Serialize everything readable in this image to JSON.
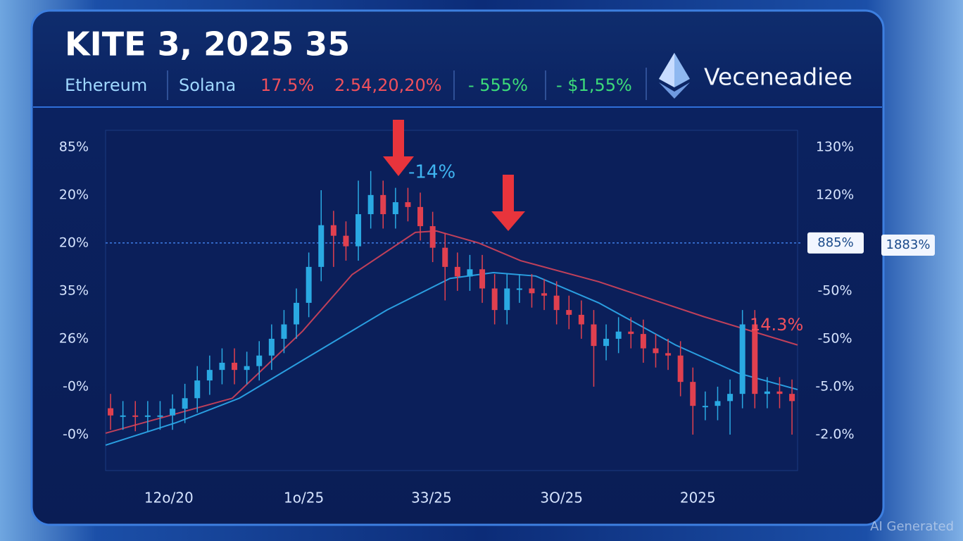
{
  "chart_data": {
    "type": "candlestick",
    "title": "KITE 3, 2025 35",
    "header_items": [
      {
        "text": "Ethereum",
        "color": "#9fd8ff"
      },
      {
        "text": "Solana",
        "color": "#9fd8ff"
      },
      {
        "text": "17.5%",
        "color": "#f0505c"
      },
      {
        "text": "2.54,20,20%",
        "color": "#f0505c"
      },
      {
        "text": "- 555%",
        "color": "#3ddc7a"
      },
      {
        "text": "- $1,55%",
        "color": "#3ddc7a"
      }
    ],
    "brand": "Veceneadiee",
    "watermark": "AI Generated",
    "annotations": [
      {
        "text": "-14%",
        "color": "#3fb4f0"
      },
      {
        "text": "14.3%",
        "color": "#f0505c"
      },
      {
        "text": "1883%",
        "color": "#1a4a8a"
      }
    ],
    "up_color": "#2aa9e2",
    "down_color": "#e0404f",
    "x": [
      0,
      1,
      2,
      3,
      4,
      5,
      6,
      7,
      8,
      9,
      10,
      11,
      12,
      13,
      14,
      15,
      16,
      17,
      18,
      19,
      20,
      21,
      22,
      23,
      24,
      25,
      26,
      27,
      28,
      29,
      30,
      31,
      32,
      33,
      34,
      35,
      36,
      37,
      38,
      39,
      40,
      41,
      42,
      43,
      44,
      45,
      46,
      47,
      48,
      49,
      50,
      51,
      52,
      53,
      54,
      55
    ],
    "open": [
      0.55,
      0.4,
      0.4,
      0.37,
      0.4,
      0.4,
      0.54,
      0.76,
      1.13,
      1.35,
      1.5,
      1.35,
      1.43,
      1.65,
      2.0,
      2.3,
      2.75,
      3.5,
      4.37,
      4.15,
      3.93,
      4.6,
      5.0,
      4.6,
      4.85,
      4.75,
      4.35,
      3.9,
      3.5,
      3.3,
      3.45,
      3.05,
      2.6,
      3.05,
      3.05,
      2.95,
      2.9,
      2.6,
      2.5,
      2.3,
      1.85,
      2.0,
      2.15,
      2.1,
      1.8,
      1.7,
      1.65,
      1.1,
      0.6,
      0.6,
      0.7,
      0.85,
      2.3,
      0.85,
      0.9,
      0.85
    ],
    "high": [
      0.85,
      0.7,
      0.7,
      0.7,
      0.7,
      0.84,
      1.06,
      1.43,
      1.65,
      1.8,
      1.8,
      1.73,
      1.95,
      2.3,
      2.6,
      3.05,
      3.8,
      5.1,
      4.67,
      4.45,
      5.3,
      5.5,
      5.3,
      5.15,
      5.15,
      5.05,
      4.65,
      4.2,
      3.8,
      3.75,
      3.75,
      3.35,
      3.35,
      3.35,
      3.35,
      3.25,
      3.2,
      2.9,
      2.8,
      2.6,
      2.3,
      2.45,
      2.45,
      2.4,
      2.1,
      2.0,
      1.95,
      1.4,
      0.9,
      1.0,
      1.15,
      2.6,
      2.6,
      1.2,
      1.2,
      1.15
    ],
    "low": [
      0.1,
      0.1,
      0.07,
      0.07,
      0.1,
      0.1,
      0.24,
      0.46,
      0.83,
      1.05,
      1.05,
      1.05,
      1.13,
      1.35,
      1.7,
      2.0,
      2.45,
      3.2,
      3.5,
      3.63,
      3.63,
      4.3,
      4.3,
      4.3,
      4.45,
      4.05,
      3.6,
      2.8,
      3.0,
      3.0,
      2.75,
      2.3,
      2.3,
      2.75,
      2.65,
      2.6,
      2.3,
      2.2,
      2.0,
      1.0,
      1.55,
      1.7,
      1.8,
      1.5,
      1.4,
      1.35,
      0.8,
      0.0,
      0.3,
      0.3,
      0.0,
      0.55,
      0.55,
      0.55,
      0.55,
      0.0
    ],
    "close": [
      0.4,
      0.4,
      0.37,
      0.4,
      0.4,
      0.54,
      0.76,
      1.13,
      1.35,
      1.5,
      1.35,
      1.43,
      1.65,
      2.0,
      2.3,
      2.75,
      3.5,
      4.37,
      4.15,
      3.93,
      4.6,
      5.0,
      4.6,
      4.85,
      4.75,
      4.35,
      3.9,
      3.5,
      3.3,
      3.45,
      3.05,
      2.6,
      3.05,
      3.05,
      2.95,
      2.9,
      2.6,
      2.5,
      2.3,
      1.85,
      2.0,
      2.15,
      2.1,
      1.8,
      1.7,
      1.65,
      1.1,
      0.6,
      0.6,
      0.7,
      0.85,
      2.3,
      0.85,
      0.9,
      0.85,
      0.7
    ],
    "lines": [
      {
        "color": "#c0405a",
        "x": [
          -0.4,
          9.83,
          15.5,
          19.5,
          24.6,
          26.3,
          29.7,
          33.1,
          39.4,
          47.9,
          55.45
        ],
        "values": [
          0.03,
          0.76,
          2.16,
          3.34,
          4.22,
          4.25,
          4.0,
          3.63,
          3.19,
          2.46,
          1.87
        ]
      },
      {
        "color": "#2a9ee0",
        "x": [
          -0.4,
          5.3,
          10.4,
          16.6,
          22.3,
          27.4,
          30.9,
          34.3,
          39.4,
          45.6,
          50.7,
          55.45
        ],
        "values": [
          -0.22,
          0.25,
          0.76,
          1.72,
          2.6,
          3.26,
          3.38,
          3.31,
          2.75,
          1.87,
          1.28,
          0.94
        ]
      }
    ],
    "reference_line": 4,
    "xlim": [
      -0.4,
      55.45
    ],
    "xticks": [
      {
        "value": 4.7,
        "label": "12o/20"
      },
      {
        "value": 15.6,
        "label": "1o/25"
      },
      {
        "value": 25.9,
        "label": "33/25"
      },
      {
        "value": 36.4,
        "label": "3O/25"
      },
      {
        "value": 47.4,
        "label": "2025"
      }
    ],
    "ylim": [
      -0.75,
      6.35
    ],
    "yticks": [
      {
        "value": 6,
        "label": "85%"
      },
      {
        "value": 5,
        "label": "20%"
      },
      {
        "value": 4,
        "label": "20%"
      },
      {
        "value": 3,
        "label": "35%"
      },
      {
        "value": 2,
        "label": "26%"
      },
      {
        "value": 1,
        "label": "-0%"
      },
      {
        "value": 0,
        "label": "-0%"
      }
    ],
    "y2lim": [
      -0.75,
      6.35
    ],
    "y2ticks": [
      {
        "value": 6,
        "label": "130%"
      },
      {
        "value": 5,
        "label": "120%"
      },
      {
        "value": 4,
        "label": "885%"
      },
      {
        "value": 3,
        "label": "-50%"
      },
      {
        "value": 2,
        "label": "-50%"
      },
      {
        "value": 1,
        "label": "-5.0%"
      },
      {
        "value": 0,
        "label": "-2.0%"
      }
    ]
  }
}
